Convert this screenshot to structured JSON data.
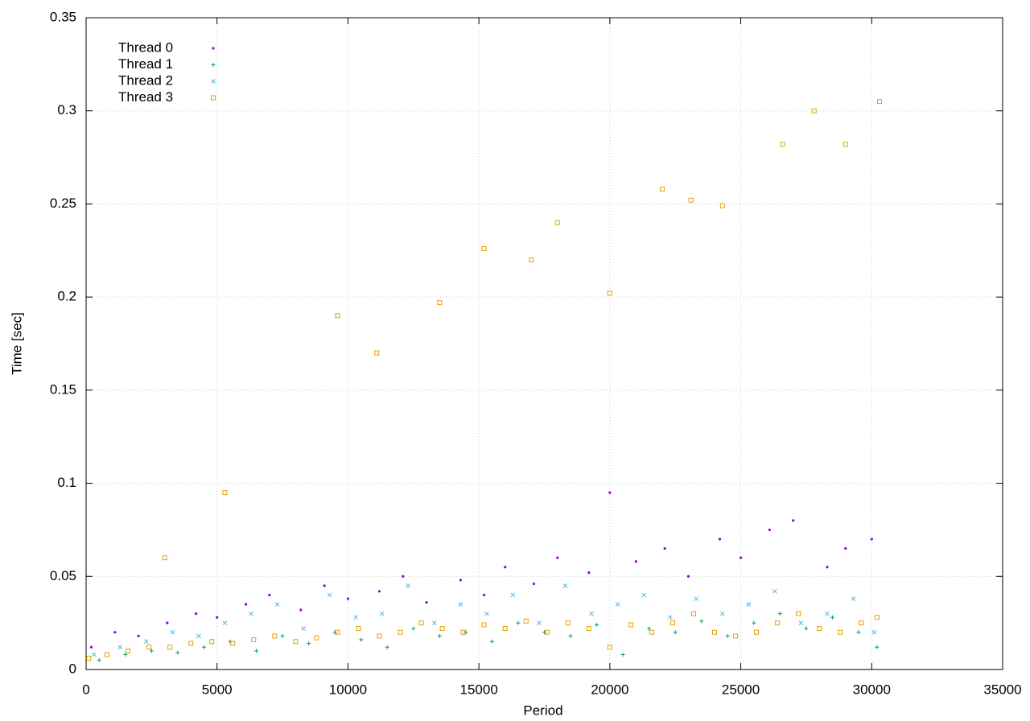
{
  "chart_data": {
    "type": "scatter",
    "xlabel": "Period",
    "ylabel": "Time [sec]",
    "xlim": [
      0,
      35000
    ],
    "ylim": [
      0,
      0.35
    ],
    "xticks": [
      0,
      5000,
      10000,
      15000,
      20000,
      25000,
      30000,
      35000
    ],
    "yticks": [
      0,
      0.05,
      0.1,
      0.15,
      0.2,
      0.25,
      0.3,
      0.35
    ],
    "grid": true,
    "legend": "upper left",
    "series": [
      {
        "name": "Thread 0",
        "color": "#9400d3",
        "x": [
          200,
          1100,
          2000,
          3100,
          4200,
          5000,
          6100,
          7000,
          8200,
          9100,
          10000,
          11200,
          12100,
          13000,
          14300,
          15200,
          16000,
          17100,
          18000,
          19200,
          20000,
          21000,
          22100,
          23000,
          24200,
          25000,
          26100,
          27000,
          28300,
          29000,
          30000
        ],
        "values": [
          0.012,
          0.02,
          0.018,
          0.025,
          0.03,
          0.028,
          0.035,
          0.04,
          0.032,
          0.045,
          0.038,
          0.042,
          0.05,
          0.036,
          0.048,
          0.04,
          0.055,
          0.046,
          0.06,
          0.052,
          0.095,
          0.058,
          0.065,
          0.05,
          0.07,
          0.06,
          0.075,
          0.08,
          0.055,
          0.065,
          0.07
        ]
      },
      {
        "name": "Thread 1",
        "color": "#009e73",
        "x": [
          500,
          1500,
          2500,
          3500,
          4500,
          5500,
          6500,
          7500,
          8500,
          9500,
          10500,
          11500,
          12500,
          13500,
          14500,
          15500,
          16500,
          17500,
          18500,
          19500,
          20500,
          21500,
          22500,
          23500,
          24500,
          25500,
          26500,
          27500,
          28500,
          29500,
          30200
        ],
        "values": [
          0.005,
          0.008,
          0.01,
          0.009,
          0.012,
          0.015,
          0.01,
          0.018,
          0.014,
          0.02,
          0.016,
          0.012,
          0.022,
          0.018,
          0.02,
          0.015,
          0.025,
          0.02,
          0.018,
          0.024,
          0.008,
          0.022,
          0.02,
          0.026,
          0.018,
          0.025,
          0.03,
          0.022,
          0.028,
          0.02,
          0.012
        ]
      },
      {
        "name": "Thread 2",
        "color": "#56b4e9",
        "x": [
          300,
          1300,
          2300,
          3300,
          4300,
          5300,
          6300,
          7300,
          8300,
          9300,
          10300,
          11300,
          12300,
          13300,
          14300,
          15300,
          16300,
          17300,
          18300,
          19300,
          20300,
          21300,
          22300,
          23300,
          24300,
          25300,
          26300,
          27300,
          28300,
          29300,
          30100
        ],
        "values": [
          0.008,
          0.012,
          0.015,
          0.02,
          0.018,
          0.025,
          0.03,
          0.035,
          0.022,
          0.04,
          0.028,
          0.03,
          0.045,
          0.025,
          0.035,
          0.03,
          0.04,
          0.025,
          0.045,
          0.03,
          0.035,
          0.04,
          0.028,
          0.038,
          0.03,
          0.035,
          0.042,
          0.025,
          0.03,
          0.038,
          0.02
        ]
      },
      {
        "name": "Thread 3",
        "color": "#e69f00",
        "x": [
          100,
          800,
          1600,
          2400,
          3200,
          4000,
          4800,
          5600,
          6400,
          7200,
          8000,
          8800,
          9600,
          10400,
          11200,
          12000,
          12800,
          13600,
          14400,
          15200,
          16000,
          16800,
          17600,
          18400,
          19200,
          20000,
          20800,
          21600,
          22400,
          23200,
          24000,
          24800,
          25600,
          26400,
          27200,
          28000,
          28800,
          29600,
          30200,
          9600,
          11100,
          13500,
          15200,
          17000,
          18000,
          20000,
          22000,
          23100,
          24300,
          26600,
          27800,
          29000,
          30300,
          3000,
          5300
        ],
        "values": [
          0.006,
          0.008,
          0.01,
          0.012,
          0.012,
          0.014,
          0.015,
          0.014,
          0.016,
          0.018,
          0.015,
          0.017,
          0.02,
          0.022,
          0.018,
          0.02,
          0.025,
          0.022,
          0.02,
          0.024,
          0.022,
          0.026,
          0.02,
          0.025,
          0.022,
          0.012,
          0.024,
          0.02,
          0.025,
          0.03,
          0.02,
          0.018,
          0.02,
          0.025,
          0.03,
          0.022,
          0.02,
          0.025,
          0.028,
          0.19,
          0.17,
          0.197,
          0.226,
          0.22,
          0.24,
          0.202,
          0.258,
          0.252,
          0.249,
          0.282,
          0.3,
          0.282,
          0.305,
          0.06,
          0.095
        ]
      }
    ]
  }
}
